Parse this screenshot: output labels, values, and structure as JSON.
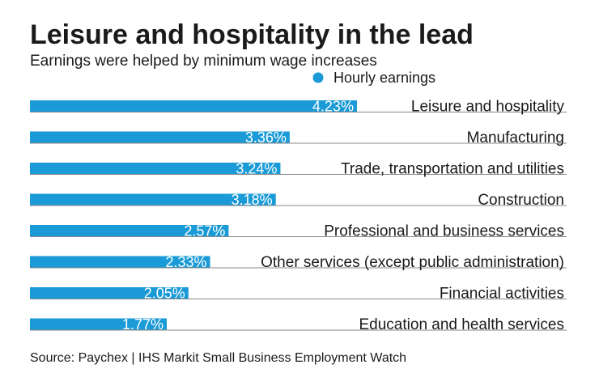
{
  "chart_data": {
    "type": "hbar",
    "title": "Leisure and hospitality in the lead",
    "subtitle": "Earnings were helped by minimum wage increases",
    "categories": [
      "Leisure and hospitality",
      "Manufacturing",
      "Trade, transportation and utilities",
      "Construction",
      "Professional and business services",
      "Other services (except public administration)",
      "Financial activities",
      "Education and health services"
    ],
    "series": [
      {
        "name": "Hourly earnings",
        "color": "#1a9ad6",
        "values": [
          4.23,
          3.36,
          3.24,
          3.18,
          2.57,
          2.33,
          2.05,
          1.77
        ],
        "value_labels": [
          "4.23%",
          "3.36%",
          "3.24%",
          "3.18%",
          "2.57%",
          "2.33%",
          "2.05%",
          "1.77%"
        ]
      }
    ],
    "source": "Source: Paychex | IHS Markit Small Business Employment Watch"
  }
}
